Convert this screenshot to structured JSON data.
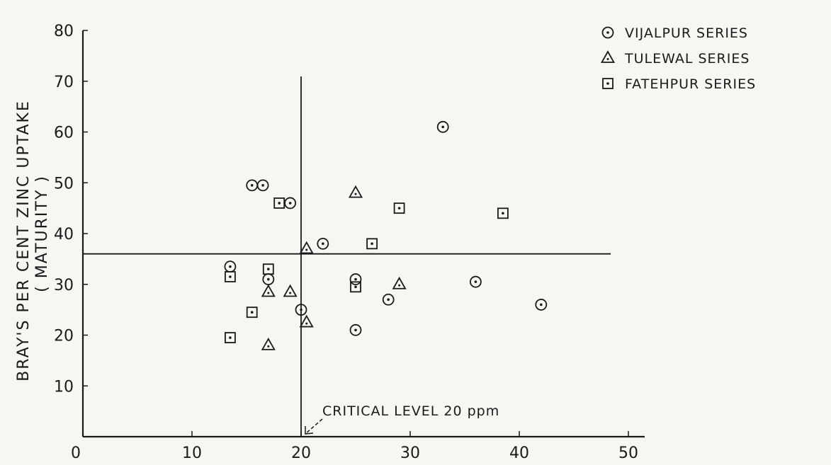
{
  "chart_data": {
    "type": "scatter",
    "title": "",
    "ylabel": "BRAY'S PER CENT ZINC UPTAKE",
    "ylabel_sub": "( MATURITY )",
    "xlabel": "",
    "xlim": [
      0,
      50
    ],
    "ylim": [
      0,
      80
    ],
    "x_ticks": [
      0,
      10,
      20,
      30,
      40,
      50
    ],
    "y_ticks": [
      10,
      20,
      30,
      40,
      50,
      60,
      70,
      80
    ],
    "grid": false,
    "legend_position": "top-right",
    "series": [
      {
        "name": "VIJALPUR SERIES",
        "marker": "circle-dot",
        "points": [
          [
            13.5,
            33.5
          ],
          [
            15.5,
            49.5
          ],
          [
            16.5,
            49.5
          ],
          [
            17,
            31
          ],
          [
            19,
            46
          ],
          [
            20,
            25
          ],
          [
            22,
            38
          ],
          [
            25,
            31
          ],
          [
            25,
            21
          ],
          [
            28,
            27
          ],
          [
            33,
            61
          ],
          [
            36,
            30.5
          ],
          [
            42,
            26
          ]
        ]
      },
      {
        "name": "TULEWAL SERIES",
        "marker": "triangle",
        "points": [
          [
            17,
            28.5
          ],
          [
            19,
            28.5
          ],
          [
            17,
            18
          ],
          [
            20.5,
            37
          ],
          [
            20.5,
            22.5
          ],
          [
            25,
            48
          ],
          [
            29,
            30
          ]
        ]
      },
      {
        "name": "FATEHPUR SERIES",
        "marker": "square-dot",
        "points": [
          [
            13.5,
            31.5
          ],
          [
            13.5,
            19.5
          ],
          [
            15.5,
            24.5
          ],
          [
            17,
            33
          ],
          [
            18,
            46
          ],
          [
            25,
            29.5
          ],
          [
            26.5,
            38
          ],
          [
            29,
            45
          ],
          [
            38.5,
            44
          ]
        ]
      }
    ],
    "reference_lines": {
      "vertical_x": 20,
      "horizontal_y": 36
    },
    "annotation": "CRITICAL LEVEL 20 ppm"
  }
}
